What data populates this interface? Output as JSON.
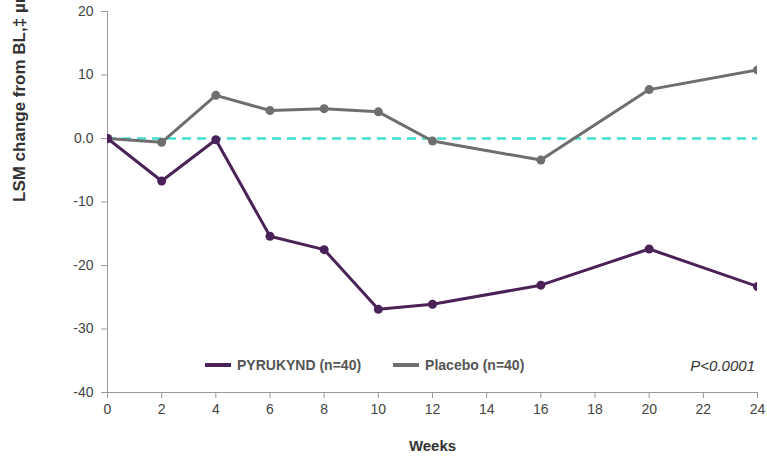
{
  "chart_data": {
    "type": "line",
    "y_label": "LSM change from BL,‡ µmol/L",
    "x_label": "Weeks",
    "annotation": "P<0.0001",
    "x": [
      0,
      2,
      4,
      6,
      8,
      10,
      12,
      16,
      20,
      24
    ],
    "series": [
      {
        "name": "PYRUKYND (n=40)",
        "color": "#4b2258",
        "marker": "circle",
        "values": [
          0,
          -6.7,
          -0.2,
          -15.4,
          -17.5,
          -26.9,
          -26.1,
          -23.1,
          -17.4,
          -23.3
        ]
      },
      {
        "name": "Placebo (n=40)",
        "color": "#6e6e6e",
        "marker": "circle",
        "values": [
          0,
          -0.6,
          6.8,
          4.4,
          4.7,
          4.2,
          -0.4,
          -3.4,
          7.7,
          10.8
        ]
      }
    ],
    "reference_line": {
      "value": 0,
      "color": "#40e0d0",
      "line_style": "dashed"
    },
    "xlim": [
      0,
      24
    ],
    "xticks": [
      0,
      2,
      4,
      6,
      8,
      10,
      12,
      14,
      16,
      18,
      20,
      22,
      24
    ],
    "ylim": [
      -40,
      20
    ],
    "yticks": [
      -40,
      -30,
      -20,
      -10,
      {
        "value": 0,
        "label": "0.0"
      },
      10,
      20
    ],
    "grid": false,
    "legend": "bottom"
  }
}
